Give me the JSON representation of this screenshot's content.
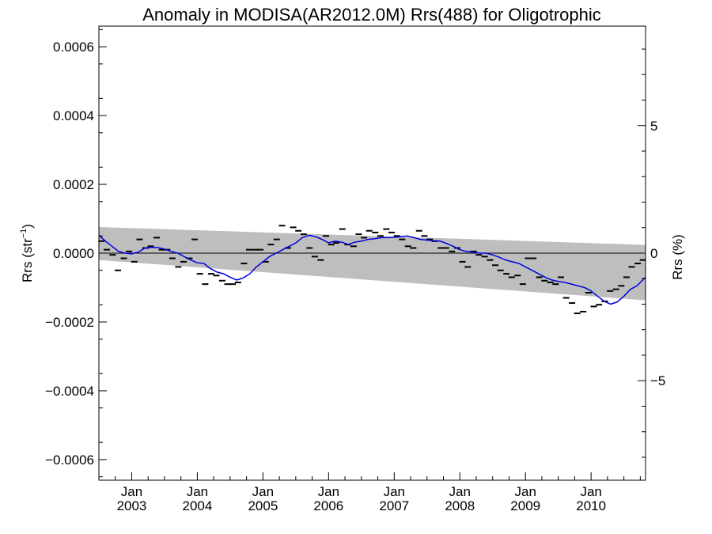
{
  "chart_data": {
    "type": "line",
    "title": "Anomaly in MODISA(AR2012.0M) Rrs(488) for Oligotrophic",
    "ylabel": "Rrs (str⁻¹)",
    "ylabel_base": "Rrs (str",
    "ylabel_sup": "−1",
    "ylabel_close": ")",
    "y2label": "Rrs (%)",
    "xlim": [
      2002.5,
      2010.83
    ],
    "ylim": [
      -0.00066,
      0.00066
    ],
    "y2lim": [
      -8.9,
      8.9
    ],
    "yticks": [
      {
        "value": 0.0006,
        "label": "0.0006"
      },
      {
        "value": 0.0004,
        "label": "0.0004"
      },
      {
        "value": 0.0002,
        "label": "0.0002"
      },
      {
        "value": 0.0,
        "label": "0.0000"
      },
      {
        "value": -0.0002,
        "label": "−0.0002"
      },
      {
        "value": -0.0004,
        "label": "−0.0004"
      },
      {
        "value": -0.0006,
        "label": "−0.0006"
      }
    ],
    "y2ticks": [
      {
        "value": 5,
        "label": "5"
      },
      {
        "value": 0,
        "label": "0"
      },
      {
        "value": -5,
        "label": "−5"
      }
    ],
    "xticks": [
      {
        "value": 2003.0,
        "month": "Jan",
        "year": "2003"
      },
      {
        "value": 2004.0,
        "month": "Jan",
        "year": "2004"
      },
      {
        "value": 2005.0,
        "month": "Jan",
        "year": "2005"
      },
      {
        "value": 2006.0,
        "month": "Jan",
        "year": "2006"
      },
      {
        "value": 2007.0,
        "month": "Jan",
        "year": "2007"
      },
      {
        "value": 2008.0,
        "month": "Jan",
        "year": "2008"
      },
      {
        "value": 2009.0,
        "month": "Jan",
        "year": "2009"
      },
      {
        "value": 2010.0,
        "month": "Jan",
        "year": "2010"
      }
    ],
    "band": {
      "x": [
        2002.5,
        2010.83
      ],
      "upper": [
        7.6e-05,
        2.4e-05
      ],
      "lower": [
        -2e-05,
        -0.000137
      ],
      "color": "#bebebe"
    },
    "zero_line": {
      "y": 0.0,
      "color": "#000000"
    },
    "monthly_anomalies": {
      "color": "#000000",
      "x": [
        2002.54,
        2002.62,
        2002.71,
        2002.79,
        2002.88,
        2002.96,
        2003.04,
        2003.12,
        2003.21,
        2003.29,
        2003.38,
        2003.46,
        2003.54,
        2003.62,
        2003.71,
        2003.79,
        2003.88,
        2003.96,
        2004.04,
        2004.12,
        2004.21,
        2004.29,
        2004.38,
        2004.46,
        2004.54,
        2004.62,
        2004.71,
        2004.79,
        2004.88,
        2004.96,
        2005.04,
        2005.12,
        2005.21,
        2005.29,
        2005.38,
        2005.46,
        2005.54,
        2005.62,
        2005.71,
        2005.79,
        2005.88,
        2005.96,
        2006.04,
        2006.12,
        2006.21,
        2006.29,
        2006.38,
        2006.46,
        2006.54,
        2006.62,
        2006.71,
        2006.79,
        2006.88,
        2006.96,
        2007.04,
        2007.12,
        2007.21,
        2007.29,
        2007.38,
        2007.46,
        2007.54,
        2007.62,
        2007.71,
        2007.79,
        2007.88,
        2007.96,
        2008.04,
        2008.12,
        2008.21,
        2008.29,
        2008.38,
        2008.46,
        2008.54,
        2008.62,
        2008.71,
        2008.79,
        2008.88,
        2008.96,
        2009.04,
        2009.12,
        2009.21,
        2009.29,
        2009.38,
        2009.46,
        2009.54,
        2009.62,
        2009.71,
        2009.79,
        2009.88,
        2009.96,
        2010.04,
        2010.12,
        2010.21,
        2010.29,
        2010.38,
        2010.46,
        2010.54,
        2010.62,
        2010.71,
        2010.79
      ],
      "y": [
        3.5e-05,
        1e-05,
        -5e-06,
        -5e-05,
        -1.5e-05,
        5e-06,
        -2.5e-05,
        4e-05,
        1.5e-05,
        2e-05,
        4.5e-05,
        1e-05,
        1e-05,
        -1.5e-05,
        -4e-05,
        -2.5e-05,
        -1.5e-05,
        4e-05,
        -6e-05,
        -9e-05,
        -6e-05,
        -6.5e-05,
        -8e-05,
        -9e-05,
        -9e-05,
        -8.5e-05,
        -3e-05,
        1e-05,
        1e-05,
        1e-05,
        -2.5e-05,
        2.5e-05,
        4e-05,
        8e-05,
        1.5e-05,
        7.5e-05,
        6.5e-05,
        5.5e-05,
        1.5e-05,
        -1e-05,
        -2e-05,
        5e-05,
        2.5e-05,
        3e-05,
        7e-05,
        2.5e-05,
        2e-05,
        5.5e-05,
        4.5e-05,
        6.5e-05,
        6e-05,
        5e-05,
        7e-05,
        6e-05,
        5e-05,
        4e-05,
        2e-05,
        1.5e-05,
        6.5e-05,
        5e-05,
        4e-05,
        3.5e-05,
        1.5e-05,
        1.5e-05,
        5e-06,
        1.5e-05,
        -2.5e-05,
        -4e-05,
        5e-06,
        -5e-06,
        -1e-05,
        -2e-05,
        -3.5e-05,
        -5e-05,
        -6e-05,
        -7e-05,
        -6.5e-05,
        -9e-05,
        -1.5e-05,
        -1.5e-05,
        -7e-05,
        -8e-05,
        -8.5e-05,
        -9e-05,
        -7e-05,
        -0.00013,
        -0.000145,
        -0.000175,
        -0.00017,
        -0.000115,
        -0.000155,
        -0.00015,
        -0.00014,
        -0.00011,
        -0.000105,
        -9.5e-05,
        -7e-05,
        -4e-05,
        -3e-05,
        -2e-05
      ]
    },
    "running_mean": {
      "color": "#0000dd",
      "x": [
        2002.5,
        2002.6,
        2002.7,
        2002.8,
        2002.9,
        2003.0,
        2003.1,
        2003.2,
        2003.3,
        2003.4,
        2003.5,
        2003.6,
        2003.7,
        2003.8,
        2003.9,
        2004.0,
        2004.1,
        2004.2,
        2004.3,
        2004.4,
        2004.5,
        2004.6,
        2004.7,
        2004.8,
        2004.9,
        2005.0,
        2005.1,
        2005.2,
        2005.3,
        2005.4,
        2005.5,
        2005.6,
        2005.7,
        2005.8,
        2005.9,
        2006.0,
        2006.1,
        2006.2,
        2006.3,
        2006.4,
        2006.5,
        2006.6,
        2006.7,
        2006.8,
        2006.9,
        2007.0,
        2007.1,
        2007.2,
        2007.3,
        2007.4,
        2007.5,
        2007.6,
        2007.7,
        2007.8,
        2007.9,
        2008.0,
        2008.1,
        2008.2,
        2008.3,
        2008.4,
        2008.5,
        2008.6,
        2008.7,
        2008.8,
        2008.9,
        2009.0,
        2009.1,
        2009.2,
        2009.3,
        2009.4,
        2009.5,
        2009.6,
        2009.7,
        2009.8,
        2009.9,
        2010.0,
        2010.1,
        2010.2,
        2010.3,
        2010.4,
        2010.5,
        2010.6,
        2010.7,
        2010.83
      ],
      "y": [
        5.2e-05,
        3.5e-05,
        2e-05,
        5e-06,
        0.0,
        -2e-06,
        3e-06,
        1.5e-05,
        1.7e-05,
        1.6e-05,
        1.2e-05,
        5e-06,
        0.0,
        -1e-05,
        -2e-05,
        -2.8e-05,
        -3e-05,
        -4.5e-05,
        -5.5e-05,
        -6e-05,
        -7e-05,
        -7.8e-05,
        -7.2e-05,
        -6e-05,
        -4e-05,
        -2.5e-05,
        -1e-05,
        0.0,
        1e-05,
        2e-05,
        3e-05,
        4.5e-05,
        5.2e-05,
        4.8e-05,
        4e-05,
        3e-05,
        3.5e-05,
        3.2e-05,
        2.5e-05,
        3.2e-05,
        3.5e-05,
        4e-05,
        4.2e-05,
        4.5e-05,
        4.5e-05,
        4.6e-05,
        4.8e-05,
        5e-05,
        4.5e-05,
        4e-05,
        3.8e-05,
        3.6e-05,
        3.5e-05,
        2.8e-05,
        2e-05,
        1e-05,
        5e-06,
        3e-06,
        0.0,
        0.0,
        -5e-06,
        -1.2e-05,
        -2e-05,
        -2.5e-05,
        -3e-05,
        -4e-05,
        -5e-05,
        -6e-05,
        -7e-05,
        -7.8e-05,
        -8.2e-05,
        -8.5e-05,
        -9e-05,
        -9.5e-05,
        -0.0001,
        -0.00011,
        -0.000125,
        -0.00014,
        -0.000148,
        -0.000142,
        -0.000125,
        -0.000105,
        -9.5e-05,
        -7e-05
      ]
    }
  }
}
